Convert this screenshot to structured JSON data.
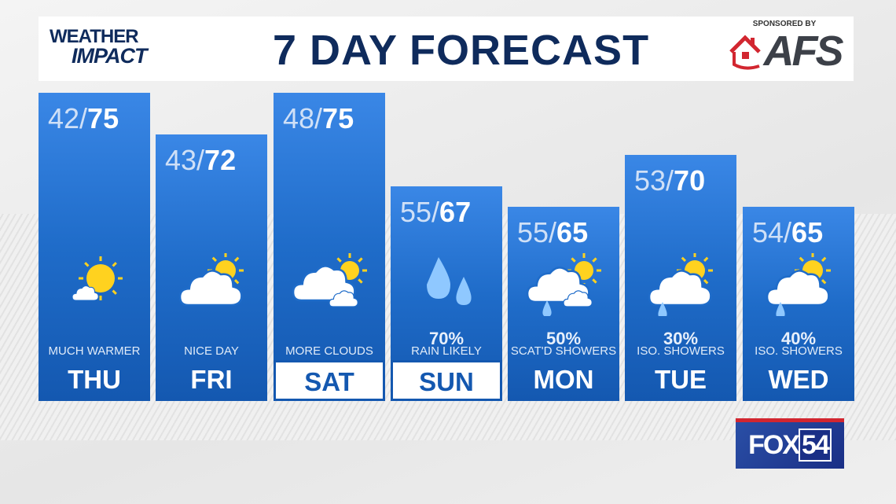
{
  "header": {
    "brand_line1": "WEATHER",
    "brand_line2": "IMPACT",
    "title": "7 DAY FORECAST",
    "sponsor_label": "SPONSORED BY",
    "sponsor_name": "AFS"
  },
  "days": [
    {
      "day": "THU",
      "low": "42/",
      "high": "75",
      "pop": "",
      "desc": "MUCH WARMER",
      "icon": "sun-with-small-cloud-icon",
      "selected": false
    },
    {
      "day": "FRI",
      "low": "43/",
      "high": "72",
      "pop": "",
      "desc": "NICE DAY",
      "icon": "cloud-sun-icon",
      "selected": false
    },
    {
      "day": "SAT",
      "low": "48/",
      "high": "75",
      "pop": "",
      "desc": "MORE CLOUDS",
      "icon": "clouds-sun-icon",
      "selected": true
    },
    {
      "day": "SUN",
      "low": "55/",
      "high": "67",
      "pop": "70%",
      "desc": "RAIN LIKELY",
      "icon": "raindrops-icon",
      "selected": true
    },
    {
      "day": "MON",
      "low": "55/",
      "high": "65",
      "pop": "50%",
      "desc": "SCAT'D SHOWERS",
      "icon": "clouds-sun-rain-icon",
      "selected": false
    },
    {
      "day": "TUE",
      "low": "53/",
      "high": "70",
      "pop": "30%",
      "desc": "ISO. SHOWERS",
      "icon": "cloud-sun-rain-icon",
      "selected": false
    },
    {
      "day": "WED",
      "low": "54/",
      "high": "65",
      "pop": "40%",
      "desc": "ISO. SHOWERS",
      "icon": "cloud-sun-rain-icon",
      "selected": false
    }
  ],
  "station": {
    "name": "FOX",
    "number": "54"
  },
  "colors": {
    "panel": "#1f6cc9",
    "navy": "#0f2b5c",
    "sun": "#ffd21f",
    "afs_red": "#d22630"
  }
}
